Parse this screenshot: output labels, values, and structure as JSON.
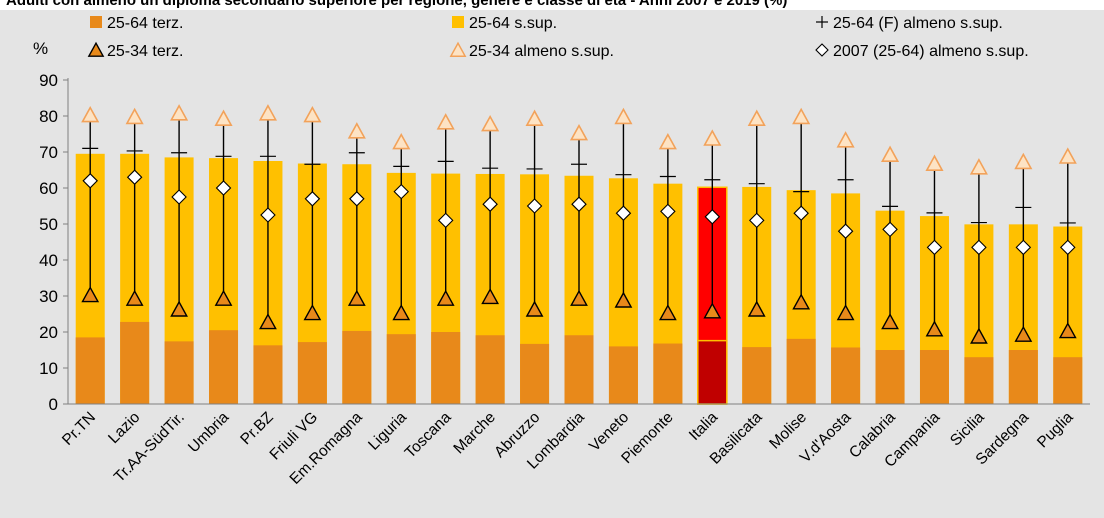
{
  "chart_data": {
    "type": "bar",
    "title": "Adulti con almeno un diploma secondario superiore per regione, genere e classe di età - Anni 2007 e 2019 (%)",
    "ylabel": "%",
    "ylim": [
      0,
      90
    ],
    "yticks": [
      0,
      10,
      20,
      30,
      40,
      50,
      60,
      70,
      80,
      90
    ],
    "grid": false,
    "legend_position": "top",
    "categories": [
      "Pr.TN",
      "Lazio",
      "Tr.AA-SüdTir.",
      "Umbria",
      "Pr.BZ",
      "Friuli VG",
      "Em.Romagna",
      "Liguria",
      "Toscana",
      "Marche",
      "Abruzzo",
      "Lombardia",
      "Veneto",
      "Piemonte",
      "Italia",
      "Basilicata",
      "Molise",
      "V.d'Aosta",
      "Calabria",
      "Campania",
      "Sicilia",
      "Sardegna",
      "Puglia"
    ],
    "highlight_category": "Italia",
    "series": [
      {
        "name": "25-64 terz.",
        "type": "bar",
        "color": "#e8891a",
        "highlight_color": "#c00000",
        "values": [
          18.5,
          22.8,
          17.4,
          20.5,
          16.3,
          17.2,
          20.3,
          19.4,
          20.0,
          19.1,
          16.7,
          19.1,
          16.0,
          16.8,
          17.6,
          15.8,
          18.1,
          15.7,
          15.0,
          15.0,
          13.0,
          15.0,
          13.0
        ]
      },
      {
        "name": "25-64 s.sup.",
        "type": "bar-total",
        "color": "#ffc000",
        "highlight_color": "#ff0000",
        "values": [
          69.5,
          69.5,
          68.5,
          68.3,
          67.5,
          66.8,
          66.6,
          64.2,
          64.0,
          63.9,
          63.8,
          63.4,
          62.7,
          61.2,
          60.2,
          60.3,
          59.4,
          58.5,
          53.7,
          52.2,
          49.9,
          49.9,
          49.3
        ]
      },
      {
        "name": "25-64 (F) almeno s.sup.",
        "type": "marker-plus",
        "color": "#000000",
        "values": [
          71.0,
          70.3,
          69.8,
          68.8,
          68.8,
          66.6,
          69.8,
          66.0,
          67.4,
          65.5,
          65.3,
          66.6,
          63.7,
          63.2,
          62.3,
          61.2,
          59.0,
          62.3,
          54.9,
          53.1,
          50.4,
          54.6,
          50.3
        ]
      },
      {
        "name": "25-34 terz.",
        "type": "marker-triangle",
        "color": "#e8891a",
        "values": [
          30.0,
          29.0,
          26.0,
          29.0,
          22.5,
          25.0,
          29.0,
          25.0,
          29.0,
          29.5,
          26.0,
          29.0,
          28.5,
          25.0,
          25.5,
          26.0,
          28.0,
          25.0,
          22.5,
          20.5,
          18.5,
          19.0,
          20.0
        ]
      },
      {
        "name": "25-34 almeno s.sup.",
        "type": "marker-triangle-open",
        "color": "#f2a25a",
        "values": [
          80.0,
          79.5,
          80.5,
          79.0,
          80.5,
          80.0,
          75.5,
          72.5,
          78.0,
          77.5,
          79.0,
          75.0,
          79.5,
          72.5,
          73.5,
          79.0,
          79.5,
          73.0,
          69.0,
          66.5,
          65.5,
          67.0,
          68.5
        ]
      },
      {
        "name": "2007 (25-64) almeno s.sup.",
        "type": "marker-diamond",
        "color": "#ffffff",
        "values": [
          62.0,
          63.0,
          57.5,
          60.0,
          52.5,
          57.0,
          57.0,
          59.0,
          51.0,
          55.5,
          55.0,
          55.5,
          53.0,
          53.5,
          52.0,
          51.0,
          53.0,
          48.0,
          48.5,
          43.5,
          43.5,
          43.5,
          43.5
        ]
      }
    ]
  }
}
